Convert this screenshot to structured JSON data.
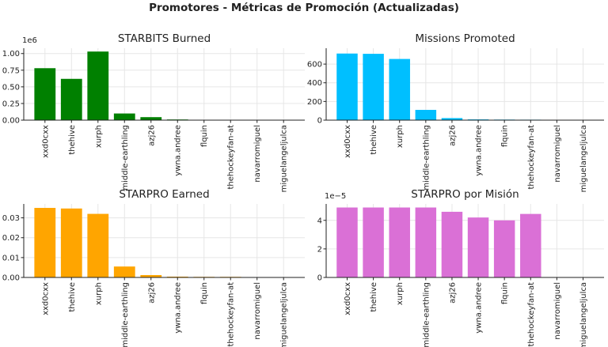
{
  "title": "Promotores - Métricas de Promoción (Actualizadas)",
  "colors": [
    "#008000",
    "#00bfff",
    "#ffa500",
    "#da70d6"
  ],
  "chart_data": [
    {
      "type": "bar",
      "title": "STARBITS Burned",
      "offset_label": "1e6",
      "categories": [
        "xxd0cxx",
        "thehive",
        "xurph",
        "middle-earthling",
        "azj26",
        "ywna.andree",
        "flquin",
        "thehockeyfan-at",
        "navarromiguel",
        "miguelangeljulca"
      ],
      "values": [
        0.78,
        0.62,
        1.03,
        0.1,
        0.045,
        0.01,
        0.005,
        0.004,
        0,
        0
      ],
      "yticks": [
        "0.00",
        "0.25",
        "0.50",
        "0.75",
        "1.00"
      ],
      "ylim": [
        0,
        1.08
      ],
      "grid": true,
      "color": "#008000"
    },
    {
      "type": "bar",
      "title": "Missions Promoted",
      "offset_label": "",
      "categories": [
        "xxd0cxx",
        "thehive",
        "xurph",
        "middle-earthling",
        "azj26",
        "ywna.andree",
        "flquin",
        "thehockeyfan-at",
        "navarromiguel",
        "miguelangeljulca"
      ],
      "values": [
        713,
        710,
        655,
        110,
        22,
        8,
        6,
        5,
        0,
        0
      ],
      "yticks": [
        "0",
        "200",
        "400",
        "600"
      ],
      "ylim": [
        0,
        770
      ],
      "grid": true,
      "color": "#00bfff"
    },
    {
      "type": "bar",
      "title": "STARPRO Earned",
      "offset_label": "",
      "categories": [
        "xxd0cxx",
        "thehive",
        "xurph",
        "middle-earthling",
        "azj26",
        "ywna.andree",
        "flquin",
        "thehockeyfan-at",
        "navarromiguel",
        "miguelangeljulca"
      ],
      "values": [
        0.035,
        0.0347,
        0.032,
        0.0055,
        0.0012,
        0.0004,
        0.0003,
        0.0003,
        0,
        0
      ],
      "yticks": [
        "0.00",
        "0.01",
        "0.02",
        "0.03"
      ],
      "ylim": [
        0,
        0.037
      ],
      "grid": true,
      "color": "#ffa500"
    },
    {
      "type": "bar",
      "title": "STARPRO por Misión",
      "offset_label": "1e−5",
      "categories": [
        "xxd0cxx",
        "thehive",
        "xurph",
        "middle-earthling",
        "azj26",
        "ywna.andree",
        "flquin",
        "thehockeyfan-at",
        "navarromiguel",
        "miguelangeljulca"
      ],
      "values": [
        4.9,
        4.9,
        4.9,
        4.9,
        4.6,
        4.2,
        4.0,
        4.45,
        0,
        0
      ],
      "yticks": [
        "0",
        "2",
        "4"
      ],
      "ylim": [
        0,
        5.15
      ],
      "grid": true,
      "color": "#da70d6"
    }
  ]
}
